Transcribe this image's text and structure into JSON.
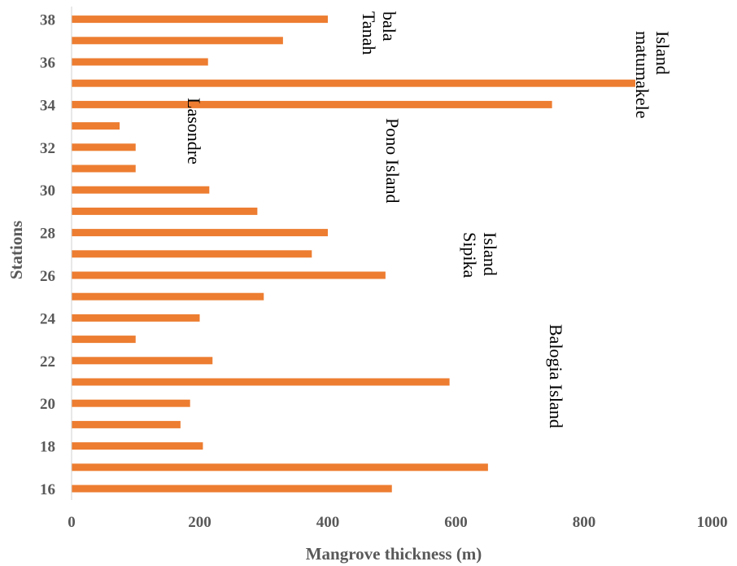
{
  "chart_data": {
    "type": "bar",
    "orientation": "horizontal",
    "xlabel": "Mangrove thickness (m)",
    "ylabel": "Stations",
    "xlim": [
      0,
      1000
    ],
    "xticks": [
      0,
      200,
      400,
      600,
      800,
      1000
    ],
    "ylim": [
      16,
      38
    ],
    "yticks": [
      16,
      18,
      20,
      22,
      24,
      26,
      28,
      30,
      32,
      34,
      36,
      38
    ],
    "grid": false,
    "bar_color": "#ED7D31",
    "categories": [
      16,
      17,
      18,
      19,
      20,
      21,
      22,
      23,
      24,
      25,
      26,
      27,
      28,
      29,
      30,
      31,
      32,
      33,
      34,
      35,
      36,
      37,
      38
    ],
    "values": [
      500,
      650,
      205,
      170,
      185,
      590,
      220,
      100,
      200,
      300,
      490,
      375,
      400,
      290,
      215,
      100,
      100,
      75,
      750,
      880,
      213,
      330,
      400
    ],
    "annotations": [
      {
        "text": "Tanah\nbala",
        "anchor_station": 37
      },
      {
        "text": "matumakele\nIsland",
        "anchor_station": 34
      },
      {
        "text": "Lasondre",
        "anchor_station": 32
      },
      {
        "text": "Pono Island",
        "anchor_station": 31
      },
      {
        "text": "Sipika\nIsland",
        "anchor_station": 26
      },
      {
        "text": "Balogia Island",
        "anchor_station": 20
      }
    ]
  }
}
